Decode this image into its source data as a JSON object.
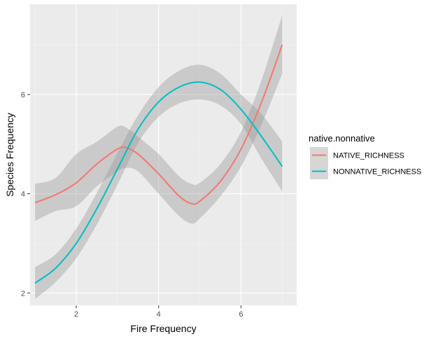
{
  "chart_data": {
    "type": "line",
    "title": "",
    "xlabel": "Fire Frequency",
    "ylabel": "Species Frequency",
    "xlim": [
      0.88,
      7.35
    ],
    "ylim": [
      1.75,
      7.82
    ],
    "xticks": [
      2,
      4,
      6
    ],
    "yticks": [
      2,
      4,
      6
    ],
    "grid": true,
    "legend": {
      "title": "native.nonnative",
      "placement": "right"
    },
    "colors": {
      "panel": "#ebebeb",
      "grid_major": "#ffffff",
      "grid_minor": "#f4f4f4",
      "ribbon": "#999999"
    },
    "series": [
      {
        "name": "NATIVE_RICHNESS",
        "color": "#f8766d",
        "x": [
          1.0,
          1.5,
          2.0,
          2.5,
          3.0,
          3.2,
          3.5,
          4.0,
          4.5,
          4.8,
          5.0,
          5.5,
          6.0,
          6.5,
          7.0
        ],
        "y": [
          3.82,
          3.98,
          4.22,
          4.6,
          4.9,
          4.93,
          4.8,
          4.4,
          3.95,
          3.8,
          3.85,
          4.25,
          4.9,
          5.85,
          7.0
        ],
        "lower": [
          3.45,
          3.65,
          3.75,
          4.15,
          4.45,
          4.52,
          4.45,
          4.0,
          3.55,
          3.4,
          3.5,
          3.95,
          4.55,
          5.4,
          6.42
        ],
        "upper": [
          4.2,
          4.32,
          4.8,
          5.05,
          5.35,
          5.34,
          5.15,
          4.8,
          4.35,
          4.2,
          4.22,
          4.6,
          5.25,
          6.3,
          7.6
        ]
      },
      {
        "name": "NONNATIVE_RICHNESS",
        "color": "#00bfc4",
        "x": [
          1.0,
          1.5,
          2.0,
          2.5,
          3.0,
          3.5,
          4.0,
          4.5,
          5.0,
          5.5,
          6.0,
          6.5,
          7.0
        ],
        "y": [
          2.2,
          2.5,
          3.0,
          3.7,
          4.5,
          5.3,
          5.85,
          6.15,
          6.25,
          6.1,
          5.7,
          5.15,
          4.55
        ],
        "lower": [
          1.88,
          2.22,
          2.7,
          3.38,
          4.18,
          5.02,
          5.55,
          5.82,
          5.9,
          5.78,
          5.4,
          4.7,
          4.05
        ],
        "upper": [
          2.52,
          2.78,
          3.3,
          4.02,
          4.82,
          5.58,
          6.15,
          6.48,
          6.6,
          6.42,
          6.0,
          5.6,
          5.05
        ]
      }
    ]
  }
}
